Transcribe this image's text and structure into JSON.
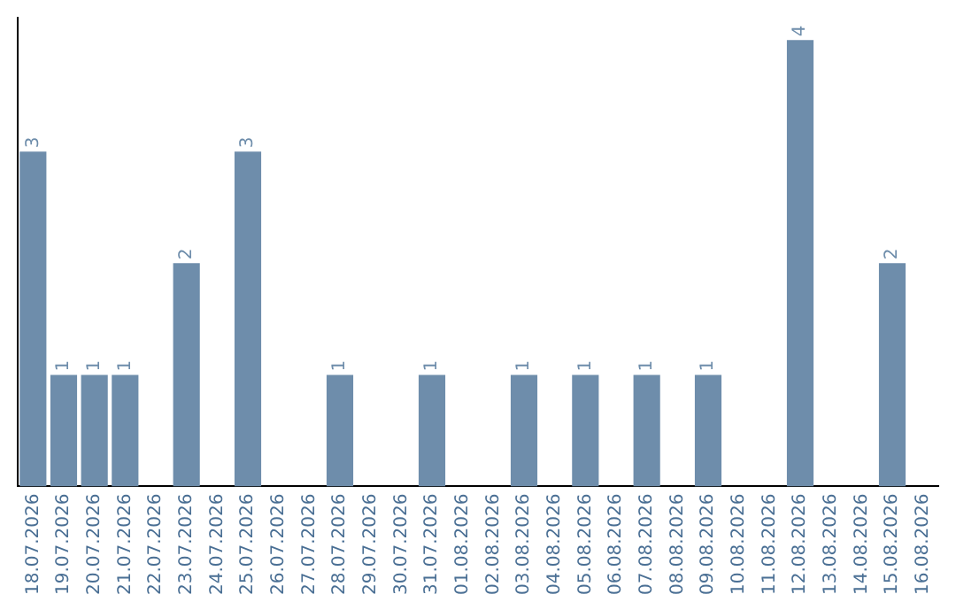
{
  "chart_data": {
    "type": "bar",
    "categories": [
      "18.07.2026",
      "19.07.2026",
      "20.07.2026",
      "21.07.2026",
      "22.07.2026",
      "23.07.2026",
      "24.07.2026",
      "25.07.2026",
      "26.07.2026",
      "27.07.2026",
      "28.07.2026",
      "29.07.2026",
      "30.07.2026",
      "31.07.2026",
      "01.08.2026",
      "02.08.2026",
      "03.08.2026",
      "04.08.2026",
      "05.08.2026",
      "06.08.2026",
      "07.08.2026",
      "08.08.2026",
      "09.08.2026",
      "10.08.2026",
      "11.08.2026",
      "12.08.2026",
      "13.08.2026",
      "14.08.2026",
      "15.08.2026",
      "16.08.2026"
    ],
    "values": [
      3,
      1,
      1,
      1,
      0,
      2,
      0,
      3,
      0,
      0,
      1,
      0,
      0,
      1,
      0,
      0,
      1,
      0,
      1,
      0,
      1,
      0,
      1,
      0,
      0,
      4,
      0,
      0,
      2,
      0
    ],
    "value_labels": [
      "3",
      "1",
      "1",
      "1",
      null,
      "2",
      null,
      "3",
      null,
      null,
      "1",
      null,
      null,
      "1",
      null,
      null,
      "1",
      null,
      "1",
      null,
      "1",
      null,
      "1",
      null,
      null,
      "4",
      null,
      null,
      "2",
      null
    ],
    "color": "#6e8dab",
    "ylim": [
      0,
      4.2
    ],
    "tick_labels": "x",
    "grid": false,
    "legend": false
  }
}
